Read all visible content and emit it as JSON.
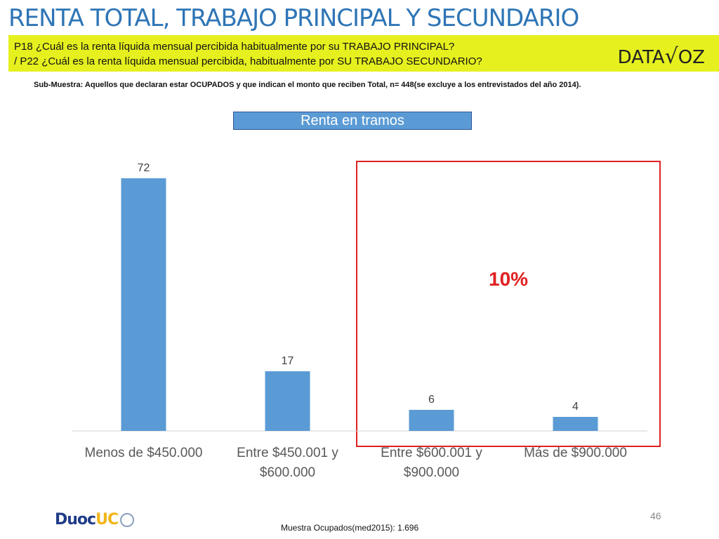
{
  "header": {
    "title": "RENTA TOTAL, TRABAJO PRINCIPAL Y SECUNDARIO",
    "question1": "P18 ¿Cuál es la renta líquida mensual percibida habitualmente por su TRABAJO PRINCIPAL?",
    "question2": "/ P22 ¿Cuál es la  renta líquida mensual percibida, habitualmente por  SU TRABAJO SECUNDARIO?",
    "logo_text": "DATA√OZ"
  },
  "note": "Sub-Muestra: Aquellos que declaran estar OCUPADOS y que indican el monto que reciben Total, n= 448(se excluye a los entrevistados del año 2014).",
  "highlight_percent": "10%",
  "page_number": "46",
  "footer": "Muestra Ocupados(med2015): 1.696",
  "brand": {
    "part1": "Duoc",
    "part2": "UC"
  },
  "colors": {
    "bar": "#5b9bd5",
    "highlight_border": "#e02020",
    "title": "#2e75b6",
    "question_band": "#e6f01e"
  },
  "chart_data": {
    "type": "bar",
    "title": "Renta en tramos",
    "categories": [
      [
        "Menos de $450.000"
      ],
      [
        "Entre $450.001 y",
        "$600.000"
      ],
      [
        "Entre $600.001 y",
        "$900.000"
      ],
      [
        "Más de $900.000"
      ]
    ],
    "values": [
      72,
      17,
      6,
      4
    ],
    "data_labels": [
      "72",
      "17",
      "6",
      "4"
    ],
    "ylim": [
      0,
      80
    ],
    "grid": false,
    "highlighted_categories": [
      2,
      3
    ]
  }
}
